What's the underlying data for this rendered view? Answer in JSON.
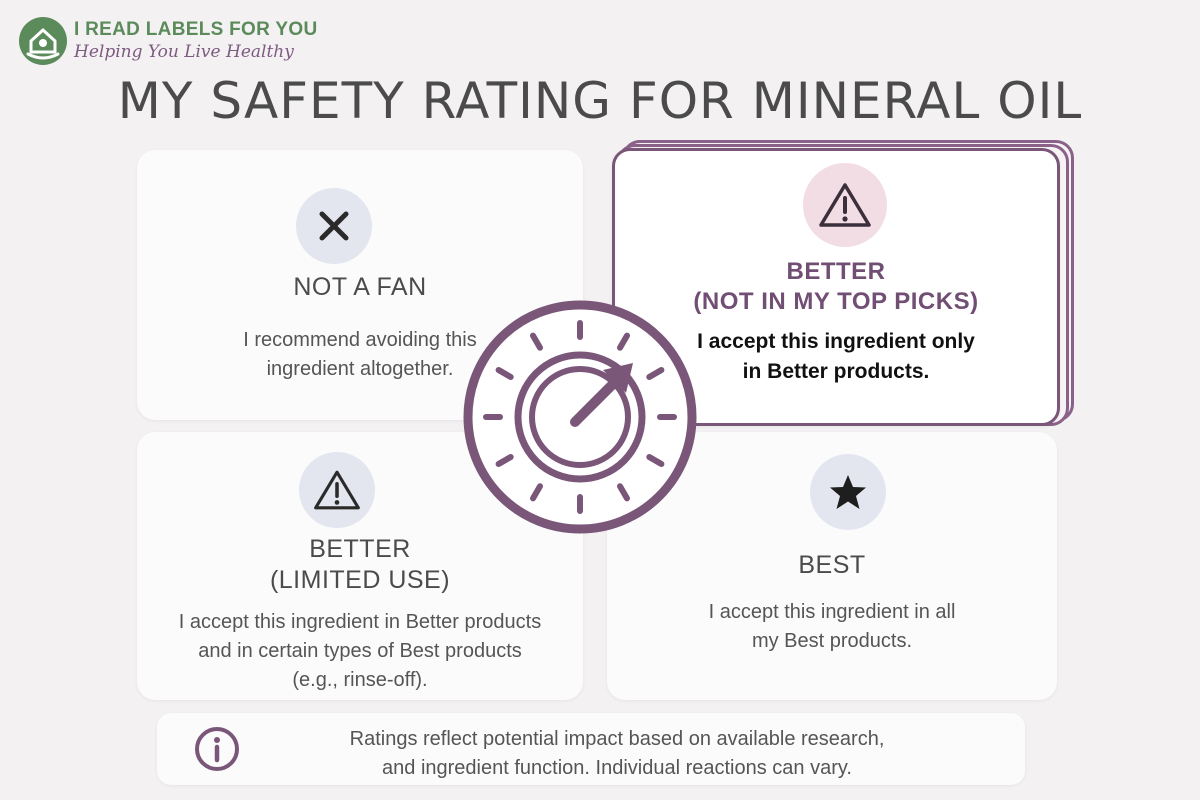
{
  "brand": {
    "name": "I READ LABELS FOR YOU",
    "tagline": "Helping You Live Healthy",
    "colors": {
      "name": "#5b8a5b",
      "tagline": "#7d5b80"
    }
  },
  "title": "MY SAFETY RATING FOR MINERAL OIL",
  "accent_color": "#7a5679",
  "cards": {
    "not_a_fan": {
      "icon": "x-icon",
      "title": "NOT A FAN",
      "body_line1": "I recommend avoiding this",
      "body_line2": "ingredient altogether."
    },
    "better_not_top": {
      "icon": "warning-icon",
      "title_line1": "BETTER",
      "title_line2": "(NOT IN MY TOP PICKS)",
      "body_line1": "I accept this ingredient only",
      "body_line2": "in Better products.",
      "selected": true
    },
    "better_limited": {
      "icon": "warning-icon",
      "title_line1": "BETTER",
      "title_line2": "(LIMITED USE)",
      "body_line1": "I accept this ingredient in Better products",
      "body_line2": "and in certain types of Best products",
      "body_line3": "(e.g., rinse-off)."
    },
    "best": {
      "icon": "star-icon",
      "title": "BEST",
      "body_line1": "I accept this ingredient in all",
      "body_line2": "my Best products."
    }
  },
  "dial_icon": "rating-dial-icon",
  "note": {
    "icon": "info-icon",
    "line1": "Ratings reflect potential impact based on available research,",
    "line2": "and ingredient function. Individual reactions can vary."
  }
}
